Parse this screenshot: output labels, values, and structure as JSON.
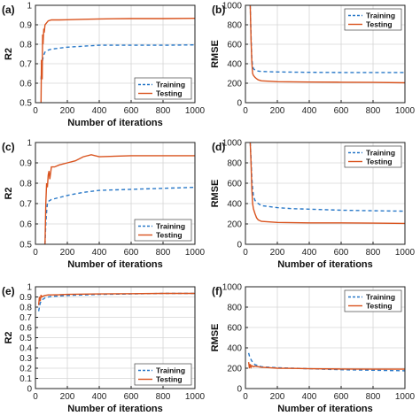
{
  "colors": {
    "training": "#2878c8",
    "testing": "#d9531e",
    "frame": "#222222",
    "grid": "#d6d6d6"
  },
  "chart_data": [
    {
      "panel": "(a)",
      "type": "line",
      "xlabel": "Number of iterations",
      "ylabel": "R2",
      "xlim": [
        0,
        1000
      ],
      "ylim": [
        0.5,
        1.0
      ],
      "xticks": [
        0,
        200,
        400,
        600,
        800,
        1000
      ],
      "yticks": [
        0.5,
        0.6,
        0.7,
        0.8,
        0.9,
        1.0
      ],
      "ytick_labels": [
        "0.5",
        "0.6",
        "0.7",
        "0.8",
        "0.9",
        "1"
      ],
      "grid": true,
      "legend": "bottom-right",
      "series": [
        {
          "name": "Training",
          "style": "dashed",
          "x": [
            35,
            40,
            45,
            50,
            60,
            80,
            100,
            150,
            200,
            300,
            400,
            600,
            800,
            1000
          ],
          "y": [
            0.62,
            0.68,
            0.72,
            0.74,
            0.76,
            0.77,
            0.775,
            0.78,
            0.785,
            0.79,
            0.795,
            0.795,
            0.795,
            0.797
          ]
        },
        {
          "name": "Testing",
          "style": "solid",
          "x": [
            35,
            38,
            42,
            45,
            48,
            52,
            55,
            60,
            70,
            80,
            100,
            150,
            200,
            300,
            400,
            600,
            800,
            1000
          ],
          "y": [
            0.5,
            0.72,
            0.62,
            0.85,
            0.8,
            0.88,
            0.86,
            0.9,
            0.91,
            0.92,
            0.925,
            0.925,
            0.926,
            0.928,
            0.93,
            0.932,
            0.932,
            0.933
          ]
        }
      ]
    },
    {
      "panel": "(b)",
      "type": "line",
      "xlabel": "",
      "ylabel": "RMSE",
      "xlim": [
        0,
        1000
      ],
      "ylim": [
        0,
        1000
      ],
      "xticks": [
        0,
        200,
        400,
        600,
        800,
        1000
      ],
      "yticks": [
        0,
        200,
        400,
        600,
        800,
        1000
      ],
      "xtick_labels": [
        "0",
        "200",
        "400",
        "600",
        "800",
        "1000"
      ],
      "grid": true,
      "legend": "top-right",
      "series": [
        {
          "name": "Training",
          "style": "dashed",
          "x": [
            30,
            35,
            40,
            45,
            50,
            60,
            80,
            100,
            150,
            200,
            400,
            600,
            800,
            1000
          ],
          "y": [
            1000,
            700,
            450,
            380,
            350,
            335,
            325,
            320,
            318,
            315,
            312,
            310,
            310,
            310
          ]
        },
        {
          "name": "Testing",
          "style": "solid",
          "x": [
            30,
            35,
            40,
            45,
            50,
            60,
            70,
            80,
            100,
            150,
            200,
            400,
            600,
            800,
            1000
          ],
          "y": [
            1000,
            650,
            420,
            300,
            280,
            260,
            245,
            235,
            225,
            220,
            215,
            212,
            210,
            208,
            205
          ]
        }
      ]
    },
    {
      "panel": "(c)",
      "type": "line",
      "xlabel": "Number of iterations",
      "ylabel": "R2",
      "xlim": [
        0,
        1000
      ],
      "ylim": [
        0.5,
        1.0
      ],
      "xticks": [
        0,
        200,
        400,
        600,
        800,
        1000
      ],
      "yticks": [
        0.5,
        0.6,
        0.7,
        0.8,
        0.9,
        1.0
      ],
      "ytick_labels": [
        "0.5",
        "0.6",
        "0.7",
        "0.8",
        "0.9",
        "1"
      ],
      "grid": true,
      "legend": "bottom-right",
      "series": [
        {
          "name": "Training",
          "style": "dashed",
          "x": [
            60,
            65,
            70,
            75,
            80,
            100,
            150,
            200,
            300,
            400,
            600,
            800,
            1000
          ],
          "y": [
            0.5,
            0.6,
            0.66,
            0.7,
            0.71,
            0.72,
            0.73,
            0.74,
            0.755,
            0.765,
            0.77,
            0.775,
            0.78
          ]
        },
        {
          "name": "Testing",
          "style": "solid",
          "x": [
            60,
            65,
            70,
            75,
            80,
            85,
            90,
            100,
            120,
            150,
            200,
            250,
            300,
            350,
            400,
            600,
            800,
            1000
          ],
          "y": [
            0.5,
            0.7,
            0.8,
            0.78,
            0.84,
            0.86,
            0.82,
            0.88,
            0.88,
            0.89,
            0.9,
            0.91,
            0.93,
            0.94,
            0.93,
            0.935,
            0.935,
            0.935
          ]
        }
      ]
    },
    {
      "panel": "(d)",
      "type": "line",
      "xlabel": "Number of iterations",
      "ylabel": "RMSE",
      "xlim": [
        0,
        1000
      ],
      "ylim": [
        0,
        1000
      ],
      "xticks": [
        0,
        200,
        400,
        600,
        800,
        1000
      ],
      "yticks": [
        0,
        200,
        400,
        600,
        800,
        1000
      ],
      "xtick_labels": [
        "0",
        "200",
        "400",
        "600",
        "800",
        "1000"
      ],
      "grid": true,
      "legend": "top-right",
      "series": [
        {
          "name": "Training",
          "style": "dashed",
          "x": [
            30,
            35,
            40,
            45,
            50,
            60,
            80,
            100,
            150,
            200,
            300,
            400,
            600,
            800,
            1000
          ],
          "y": [
            1000,
            850,
            650,
            550,
            480,
            430,
            400,
            380,
            370,
            360,
            350,
            345,
            335,
            330,
            325
          ]
        },
        {
          "name": "Testing",
          "style": "solid",
          "x": [
            30,
            35,
            40,
            45,
            50,
            60,
            70,
            80,
            100,
            150,
            200,
            300,
            400,
            600,
            800,
            1000
          ],
          "y": [
            1000,
            800,
            550,
            400,
            350,
            300,
            260,
            240,
            225,
            220,
            215,
            212,
            210,
            210,
            208,
            205
          ]
        }
      ]
    },
    {
      "panel": "(e)",
      "type": "line",
      "xlabel": "Number of iterations",
      "ylabel": "R2",
      "xlim": [
        0,
        1000
      ],
      "ylim": [
        0,
        1.0
      ],
      "xticks": [
        0,
        200,
        400,
        600,
        800,
        1000
      ],
      "yticks": [
        0,
        0.1,
        0.2,
        0.3,
        0.4,
        0.5,
        0.6,
        0.7,
        0.8,
        0.9,
        1.0
      ],
      "ytick_labels": [
        "0",
        "0.1",
        "0.2",
        "0.3",
        "0.4",
        "0.5",
        "0.6",
        "0.7",
        "0.8",
        "0.9",
        "1"
      ],
      "grid": true,
      "legend": "bottom-right",
      "series": [
        {
          "name": "Training",
          "style": "dashed",
          "x": [
            20,
            25,
            30,
            40,
            50,
            60,
            80,
            100,
            150,
            200,
            300,
            400,
            600,
            800,
            1000
          ],
          "y": [
            0.76,
            0.8,
            0.84,
            0.87,
            0.88,
            0.89,
            0.9,
            0.905,
            0.91,
            0.915,
            0.92,
            0.925,
            0.93,
            0.935,
            0.935
          ]
        },
        {
          "name": "Testing",
          "style": "solid",
          "x": [
            20,
            25,
            30,
            35,
            40,
            50,
            60,
            80,
            100,
            150,
            200,
            300,
            400,
            600,
            800,
            1000
          ],
          "y": [
            0.82,
            0.9,
            0.86,
            0.92,
            0.9,
            0.91,
            0.915,
            0.92,
            0.92,
            0.922,
            0.925,
            0.928,
            0.93,
            0.932,
            0.935,
            0.935
          ]
        }
      ]
    },
    {
      "panel": "(f)",
      "type": "line",
      "xlabel": "Number of iterations",
      "ylabel": "RMSE",
      "xlim": [
        0,
        1000
      ],
      "ylim": [
        0,
        1000
      ],
      "xticks": [
        0,
        200,
        400,
        600,
        800,
        1000
      ],
      "yticks": [
        0,
        200,
        400,
        600,
        800,
        1000
      ],
      "xtick_labels": [
        "0",
        "200",
        "400",
        "600",
        "800",
        "1000"
      ],
      "grid": true,
      "legend": "top-right",
      "series": [
        {
          "name": "Training",
          "style": "dashed",
          "x": [
            20,
            25,
            30,
            40,
            50,
            60,
            80,
            100,
            150,
            200,
            300,
            400,
            600,
            800,
            1000
          ],
          "y": [
            350,
            320,
            300,
            270,
            250,
            235,
            225,
            215,
            210,
            205,
            200,
            195,
            185,
            180,
            175
          ]
        },
        {
          "name": "Testing",
          "style": "solid",
          "x": [
            20,
            25,
            30,
            35,
            40,
            50,
            60,
            80,
            100,
            150,
            200,
            300,
            400,
            600,
            800,
            1000
          ],
          "y": [
            260,
            200,
            240,
            210,
            225,
            215,
            220,
            215,
            210,
            205,
            200,
            198,
            195,
            192,
            190,
            190
          ]
        }
      ]
    }
  ]
}
